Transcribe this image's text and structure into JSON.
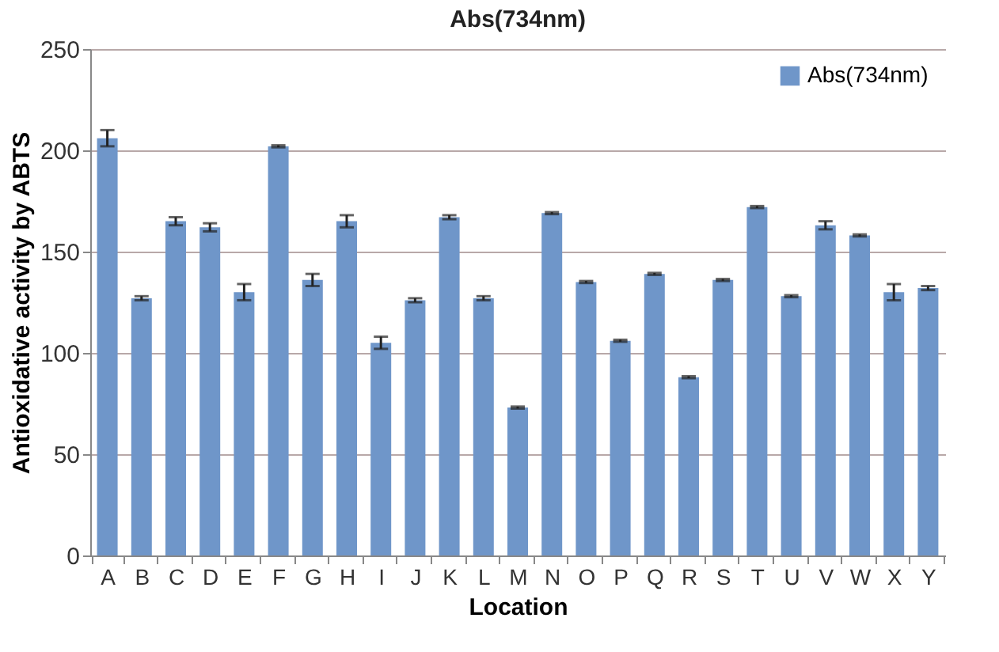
{
  "chart_data": {
    "type": "bar",
    "title": "Abs(734nm)",
    "xlabel": "Location",
    "ylabel": "Antioxidative activity by ABTS",
    "categories": [
      "A",
      "B",
      "C",
      "D",
      "E",
      "F",
      "G",
      "H",
      "I",
      "J",
      "K",
      "L",
      "M",
      "N",
      "O",
      "P",
      "Q",
      "R",
      "S",
      "T",
      "U",
      "V",
      "W",
      "X",
      "Y"
    ],
    "series": [
      {
        "name": "Abs(734nm)",
        "color": "#6f96c9",
        "values": [
          206,
          127,
          165,
          162,
          130,
          202,
          136,
          165,
          105,
          126,
          167,
          127,
          73,
          169,
          135,
          106,
          139,
          88,
          136,
          172,
          128,
          163,
          158,
          130,
          132
        ],
        "errors": [
          4,
          1,
          2,
          2,
          4,
          0.5,
          3,
          3,
          3,
          1,
          1,
          1,
          0.5,
          0.5,
          0.5,
          0.5,
          0.5,
          0.5,
          0.5,
          0.5,
          0.5,
          2,
          0.5,
          4,
          1
        ]
      }
    ],
    "ylim": [
      0,
      250
    ],
    "yticks": [
      0,
      50,
      100,
      150,
      200,
      250
    ],
    "grid": "y",
    "legend": "top right"
  }
}
